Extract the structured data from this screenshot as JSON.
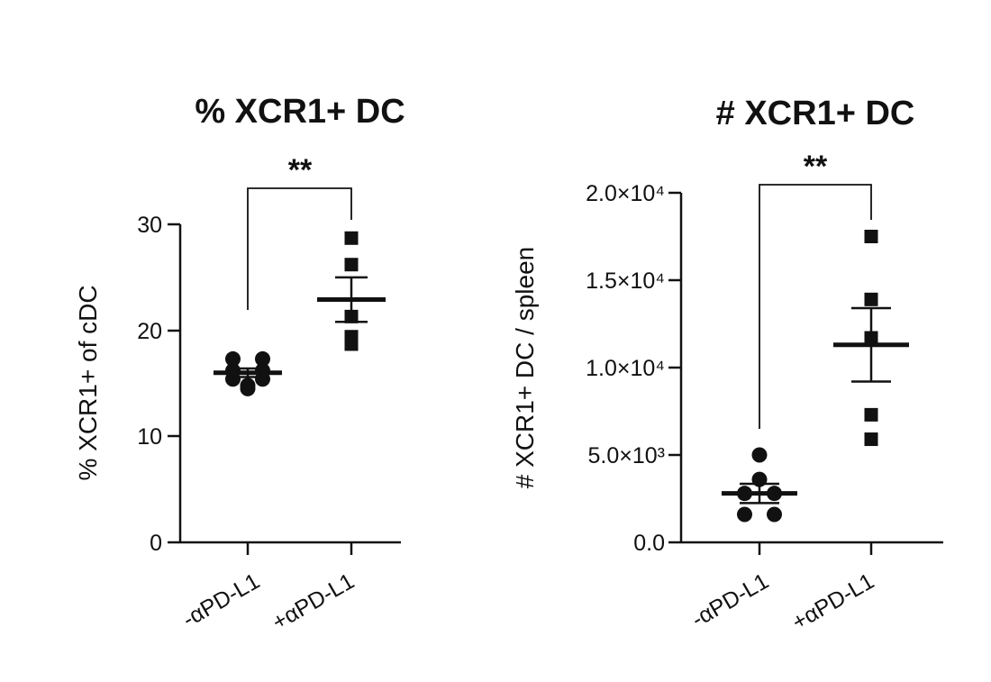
{
  "chart_data": [
    {
      "type": "scatter",
      "title": "% XCR1+ DC",
      "xlabel": "",
      "ylabel": "% XCR1+ of cDC",
      "categories": [
        "-αPD-L1",
        "+αPD-L1"
      ],
      "ylim": [
        0,
        30
      ],
      "yticks": [
        "0",
        "10",
        "20",
        "30"
      ],
      "ytick_values": [
        0,
        10,
        20,
        30
      ],
      "significance": "**",
      "grid": false,
      "series": [
        {
          "category": "-αPD-L1",
          "marker": "circle",
          "points": [
            17.3,
            17.3,
            16.2,
            16.2,
            15.4,
            15.4,
            14.8,
            14.5
          ],
          "mean": 16.0,
          "sem": 0.4
        },
        {
          "category": "+αPD-L1",
          "marker": "square",
          "points": [
            28.7,
            26.2,
            21.3,
            19.4,
            18.7
          ],
          "mean": 22.9,
          "sem": 2.1
        }
      ]
    },
    {
      "type": "scatter",
      "title": "# XCR1+ DC",
      "xlabel": "",
      "ylabel": "# XCR1+ DC / spleen",
      "categories": [
        "-αPD-L1",
        "+αPD-L1"
      ],
      "ylim": [
        0,
        20000
      ],
      "yticks": [
        "0.0",
        "5.0×10³",
        "1.0×10⁴",
        "1.5×10⁴",
        "2.0×10⁴"
      ],
      "ytick_values": [
        0,
        5000,
        10000,
        15000,
        20000
      ],
      "significance": "**",
      "grid": false,
      "series": [
        {
          "category": "-αPD-L1",
          "marker": "circle",
          "points": [
            5000,
            3600,
            2800,
            2800,
            1600,
            1600
          ],
          "mean": 2800,
          "sem": 550
        },
        {
          "category": "+αPD-L1",
          "marker": "square",
          "points": [
            17500,
            13900,
            11700,
            7300,
            5900
          ],
          "mean": 11300,
          "sem": 2100
        }
      ]
    }
  ]
}
